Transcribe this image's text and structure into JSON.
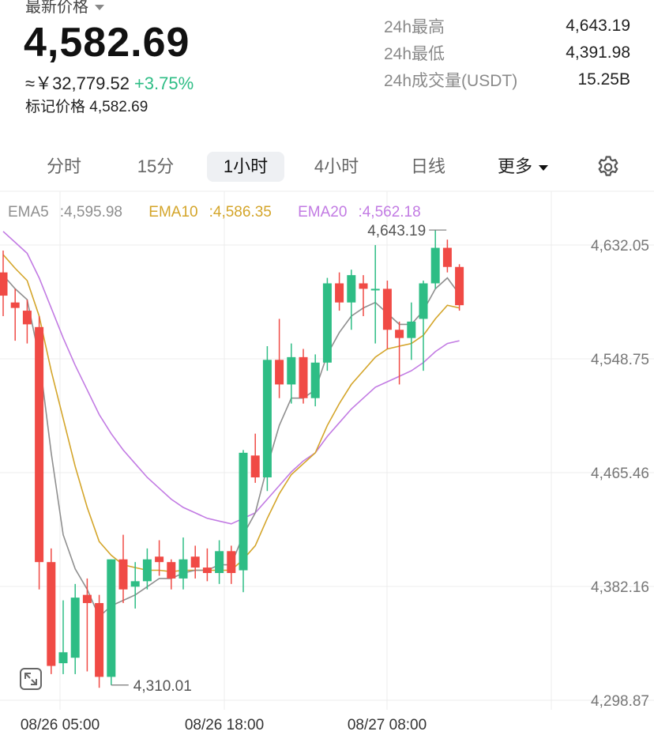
{
  "header": {
    "price_label": "最新价格",
    "last_price": "4,582.69",
    "cny_value": "≈￥32,779.52",
    "change_pct": "+3.75%",
    "mark_price_label": "标记价格",
    "mark_price": "4,582.69"
  },
  "stats": [
    {
      "label": "24h最高",
      "value": "4,643.19"
    },
    {
      "label": "24h最低",
      "value": "4,391.98"
    },
    {
      "label": "24h成交量(USDT)",
      "value": "15.25B"
    }
  ],
  "tabs": [
    {
      "label": "分时",
      "active": false
    },
    {
      "label": "15分",
      "active": false
    },
    {
      "label": "1小时",
      "active": true
    },
    {
      "label": "4小时",
      "active": false
    },
    {
      "label": "日线",
      "active": false
    },
    {
      "label": "更多",
      "active": false
    }
  ],
  "icons": {
    "settings": "gear-icon",
    "expand": "expand-icon",
    "more_caret": "caret-down-icon"
  },
  "colors": {
    "up": "#2ebd85",
    "down": "#f04a45",
    "ema5": "#8f8f8f",
    "ema10": "#d4a52a",
    "ema20": "#c27be3",
    "grid": "#ececec"
  },
  "chart_data": {
    "type": "candlestick",
    "ema_legend": [
      {
        "name": "EMA5",
        "value": "4,595.98"
      },
      {
        "name": "EMA10",
        "value": "4,586.35"
      },
      {
        "name": "EMA20",
        "value": "4,562.18"
      }
    ],
    "y_ticks": [
      "4,632.05",
      "4,548.75",
      "4,465.46",
      "4,382.16",
      "4,298.87"
    ],
    "y_tick_values": [
      4632.05,
      4548.75,
      4465.46,
      4382.16,
      4298.87
    ],
    "x_ticks": [
      "08/26 05:00",
      "08/26 18:00",
      "08/27 08:00"
    ],
    "high_label": "4,643.19",
    "low_label": "4,310.01",
    "candles": [
      {
        "o": 4612,
        "h": 4628,
        "l": 4580,
        "c": 4595
      },
      {
        "o": 4590,
        "h": 4600,
        "l": 4562,
        "c": 4586
      },
      {
        "o": 4584,
        "h": 4592,
        "l": 4560,
        "c": 4574
      },
      {
        "o": 4572,
        "h": 4580,
        "l": 4380,
        "c": 4400
      },
      {
        "o": 4400,
        "h": 4410,
        "l": 4318,
        "c": 4324
      },
      {
        "o": 4326,
        "h": 4372,
        "l": 4318,
        "c": 4334
      },
      {
        "o": 4330,
        "h": 4384,
        "l": 4318,
        "c": 4374
      },
      {
        "o": 4376,
        "h": 4388,
        "l": 4320,
        "c": 4370
      },
      {
        "o": 4370,
        "h": 4376,
        "l": 4308,
        "c": 4316
      },
      {
        "o": 4316,
        "h": 4402,
        "l": 4310,
        "c": 4402
      },
      {
        "o": 4402,
        "h": 4420,
        "l": 4370,
        "c": 4380
      },
      {
        "o": 4382,
        "h": 4400,
        "l": 4366,
        "c": 4386
      },
      {
        "o": 4386,
        "h": 4410,
        "l": 4380,
        "c": 4402
      },
      {
        "o": 4404,
        "h": 4416,
        "l": 4390,
        "c": 4400
      },
      {
        "o": 4400,
        "h": 4402,
        "l": 4380,
        "c": 4388
      },
      {
        "o": 4388,
        "h": 4418,
        "l": 4380,
        "c": 4402
      },
      {
        "o": 4404,
        "h": 4412,
        "l": 4388,
        "c": 4396
      },
      {
        "o": 4396,
        "h": 4410,
        "l": 4386,
        "c": 4392
      },
      {
        "o": 4392,
        "h": 4416,
        "l": 4384,
        "c": 4408
      },
      {
        "o": 4408,
        "h": 4412,
        "l": 4384,
        "c": 4392
      },
      {
        "o": 4394,
        "h": 4482,
        "l": 4378,
        "c": 4480
      },
      {
        "o": 4478,
        "h": 4494,
        "l": 4458,
        "c": 4462
      },
      {
        "o": 4462,
        "h": 4558,
        "l": 4452,
        "c": 4548
      },
      {
        "o": 4548,
        "h": 4578,
        "l": 4520,
        "c": 4530
      },
      {
        "o": 4530,
        "h": 4560,
        "l": 4516,
        "c": 4550
      },
      {
        "o": 4550,
        "h": 4556,
        "l": 4516,
        "c": 4520
      },
      {
        "o": 4520,
        "h": 4552,
        "l": 4514,
        "c": 4546
      },
      {
        "o": 4546,
        "h": 4608,
        "l": 4540,
        "c": 4604
      },
      {
        "o": 4604,
        "h": 4612,
        "l": 4584,
        "c": 4590
      },
      {
        "o": 4590,
        "h": 4614,
        "l": 4570,
        "c": 4610
      },
      {
        "o": 4604,
        "h": 4610,
        "l": 4580,
        "c": 4600
      },
      {
        "o": 4600,
        "h": 4632,
        "l": 4560,
        "c": 4600
      },
      {
        "o": 4600,
        "h": 4606,
        "l": 4556,
        "c": 4570
      },
      {
        "o": 4570,
        "h": 4576,
        "l": 4530,
        "c": 4564
      },
      {
        "o": 4564,
        "h": 4590,
        "l": 4548,
        "c": 4576
      },
      {
        "o": 4578,
        "h": 4606,
        "l": 4540,
        "c": 4604
      },
      {
        "o": 4604,
        "h": 4643,
        "l": 4600,
        "c": 4630
      },
      {
        "o": 4630,
        "h": 4636,
        "l": 4612,
        "c": 4616
      },
      {
        "o": 4616,
        "h": 4618,
        "l": 4584,
        "c": 4588
      }
    ],
    "ema5": [
      4610,
      4600,
      4592,
      4550,
      4480,
      4420,
      4395,
      4380,
      4360,
      4368,
      4372,
      4376,
      4382,
      4388,
      4388,
      4392,
      4394,
      4394,
      4398,
      4398,
      4420,
      4436,
      4470,
      4500,
      4520,
      4520,
      4526,
      4552,
      4568,
      4580,
      4586,
      4590,
      4582,
      4574,
      4574,
      4584,
      4600,
      4608,
      4596
    ],
    "ema10": [
      4625,
      4615,
      4606,
      4580,
      4540,
      4505,
      4470,
      4440,
      4415,
      4405,
      4398,
      4396,
      4394,
      4394,
      4393,
      4394,
      4394,
      4394,
      4394,
      4394,
      4402,
      4412,
      4432,
      4450,
      4464,
      4472,
      4480,
      4500,
      4516,
      4530,
      4540,
      4550,
      4556,
      4558,
      4560,
      4566,
      4578,
      4588,
      4586
    ],
    "ema20": [
      4642,
      4634,
      4626,
      4608,
      4586,
      4564,
      4544,
      4526,
      4508,
      4494,
      4482,
      4472,
      4462,
      4454,
      4446,
      4440,
      4436,
      4432,
      4430,
      4428,
      4432,
      4436,
      4446,
      4456,
      4466,
      4474,
      4480,
      4492,
      4502,
      4512,
      4520,
      4528,
      4532,
      4536,
      4540,
      4546,
      4554,
      4560,
      4562
    ]
  }
}
